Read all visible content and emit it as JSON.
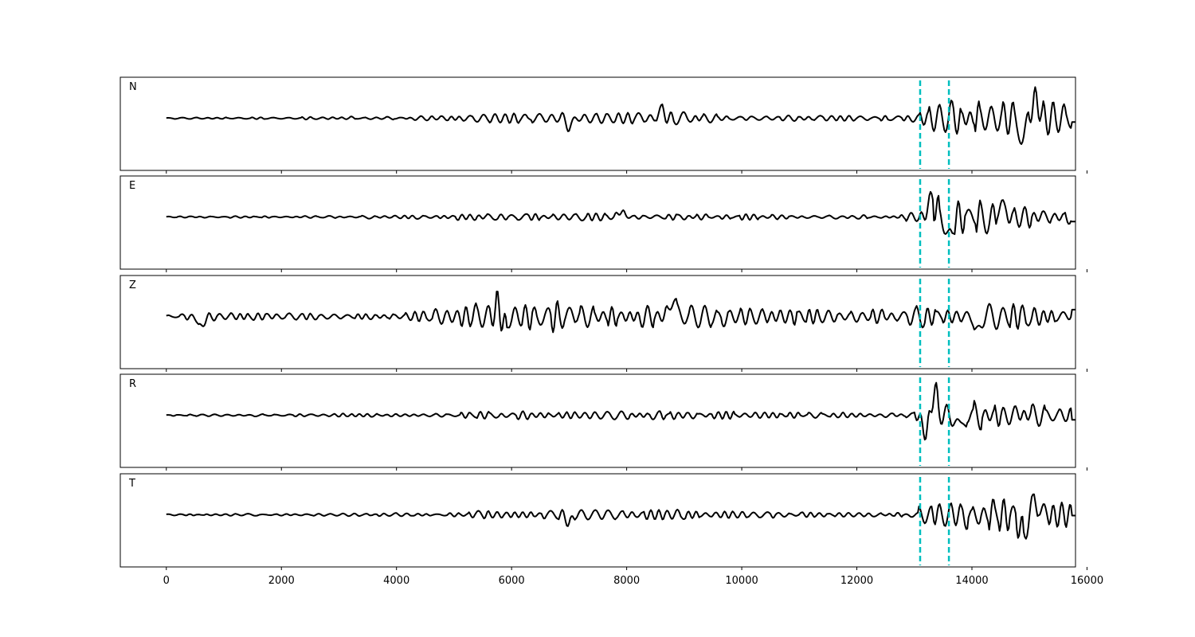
{
  "chart_data": {
    "type": "line",
    "title": "",
    "xlabel": "",
    "ylabel": "",
    "xlim": [
      -800,
      15800
    ],
    "x_ticks": [
      0,
      2000,
      4000,
      6000,
      8000,
      10000,
      12000,
      14000,
      16000
    ],
    "x_tick_labels": [
      "0",
      "2000",
      "4000",
      "6000",
      "8000",
      "10000",
      "12000",
      "14000",
      "16000"
    ],
    "n_samples": 15800,
    "picks": {
      "color": "#00bfbf",
      "style": "dashed",
      "x": [
        13100,
        13600
      ]
    },
    "line_color": "#000000",
    "panels": [
      {
        "name": "N",
        "profile": [
          [
            0,
            0.02
          ],
          [
            2000,
            0.03
          ],
          [
            5000,
            0.06
          ],
          [
            5500,
            0.14
          ],
          [
            7500,
            0.16
          ],
          [
            9000,
            0.15
          ],
          [
            10500,
            0.09
          ],
          [
            12800,
            0.06
          ],
          [
            13100,
            0.28
          ],
          [
            13400,
            0.45
          ],
          [
            14000,
            0.4
          ],
          [
            14600,
            0.6
          ],
          [
            15200,
            0.45
          ],
          [
            15800,
            0.3
          ]
        ],
        "events": [
          [
            7000,
            -0.2
          ],
          [
            8600,
            0.22
          ],
          [
            14900,
            -0.6
          ],
          [
            15100,
            0.55
          ]
        ],
        "seed": 11,
        "end_value": -0.1
      },
      {
        "name": "E",
        "profile": [
          [
            0,
            0.02
          ],
          [
            2000,
            0.03
          ],
          [
            4500,
            0.05
          ],
          [
            5500,
            0.11
          ],
          [
            7000,
            0.1
          ],
          [
            8500,
            0.08
          ],
          [
            12800,
            0.05
          ],
          [
            13100,
            0.35
          ],
          [
            13400,
            0.6
          ],
          [
            13700,
            0.5
          ],
          [
            14500,
            0.4
          ],
          [
            15200,
            0.25
          ],
          [
            15800,
            0.2
          ]
        ],
        "events": [
          [
            7900,
            0.15
          ],
          [
            13300,
            0.6
          ],
          [
            13600,
            -0.6
          ],
          [
            14500,
            0.35
          ]
        ],
        "seed": 23,
        "end_value": -0.12
      },
      {
        "name": "Z",
        "profile": [
          [
            0,
            0.04
          ],
          [
            400,
            0.12
          ],
          [
            700,
            0.18
          ],
          [
            1000,
            0.12
          ],
          [
            1500,
            0.1
          ],
          [
            3500,
            0.07
          ],
          [
            4800,
            0.22
          ],
          [
            5500,
            0.38
          ],
          [
            6200,
            0.42
          ],
          [
            7500,
            0.32
          ],
          [
            9000,
            0.28
          ],
          [
            10500,
            0.22
          ],
          [
            12500,
            0.2
          ],
          [
            13300,
            0.3
          ],
          [
            14000,
            0.35
          ],
          [
            15000,
            0.28
          ],
          [
            15800,
            0.2
          ]
        ],
        "events": [
          [
            600,
            -0.3
          ],
          [
            5800,
            0.6
          ],
          [
            5850,
            -0.62
          ],
          [
            8800,
            0.55
          ],
          [
            14100,
            -0.45
          ]
        ],
        "seed": 37,
        "end_value": 0.18
      },
      {
        "name": "R",
        "profile": [
          [
            0,
            0.02
          ],
          [
            2000,
            0.04
          ],
          [
            4500,
            0.05
          ],
          [
            5500,
            0.1
          ],
          [
            7500,
            0.11
          ],
          [
            9000,
            0.1
          ],
          [
            12800,
            0.06
          ],
          [
            13100,
            0.3
          ],
          [
            13400,
            0.6
          ],
          [
            13700,
            0.45
          ],
          [
            14500,
            0.32
          ],
          [
            15800,
            0.22
          ]
        ],
        "events": [
          [
            13350,
            0.65
          ],
          [
            13200,
            -0.55
          ],
          [
            13800,
            -0.45
          ]
        ],
        "seed": 53,
        "end_value": -0.12
      },
      {
        "name": "T",
        "profile": [
          [
            0,
            0.02
          ],
          [
            2000,
            0.03
          ],
          [
            5000,
            0.05
          ],
          [
            5500,
            0.12
          ],
          [
            7500,
            0.14
          ],
          [
            9000,
            0.13
          ],
          [
            10500,
            0.08
          ],
          [
            12800,
            0.05
          ],
          [
            13100,
            0.25
          ],
          [
            13400,
            0.42
          ],
          [
            14000,
            0.35
          ],
          [
            14600,
            0.58
          ],
          [
            15200,
            0.42
          ],
          [
            15800,
            0.28
          ]
        ],
        "events": [
          [
            7000,
            -0.2
          ],
          [
            14900,
            -0.62
          ],
          [
            15100,
            0.48
          ]
        ],
        "seed": 71,
        "end_value": -0.02
      }
    ]
  }
}
